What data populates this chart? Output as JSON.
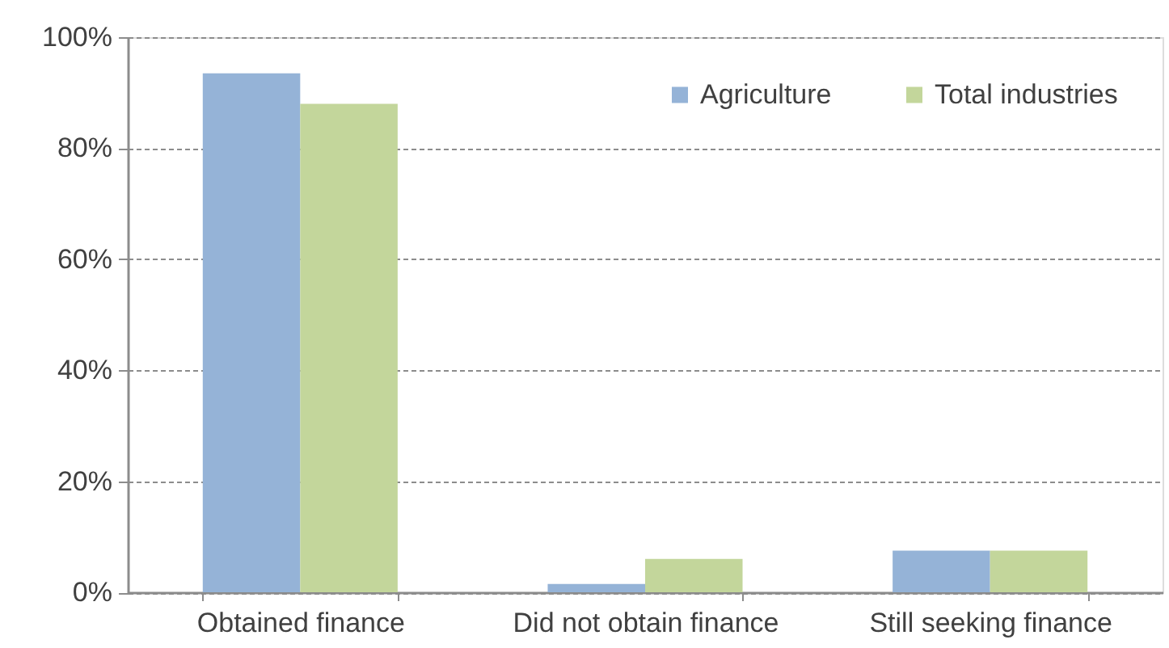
{
  "chart_data": {
    "type": "bar",
    "categories": [
      "Obtained finance",
      "Did not obtain finance",
      "Still seeking finance"
    ],
    "series": [
      {
        "name": "Agriculture",
        "color": "#95b3d7",
        "values": [
          93.5,
          1.5,
          7.5
        ]
      },
      {
        "name": "Total industries",
        "color": "#c3d69b",
        "values": [
          88,
          6,
          7.5
        ]
      }
    ],
    "ylim": [
      0,
      100
    ],
    "yticks": [
      {
        "value": 0,
        "label": "0%"
      },
      {
        "value": 20,
        "label": "20%"
      },
      {
        "value": 40,
        "label": "40%"
      },
      {
        "value": 60,
        "label": "60%"
      },
      {
        "value": 80,
        "label": "80%"
      },
      {
        "value": 100,
        "label": "100%"
      }
    ],
    "grid": "y",
    "legend": "top right"
  }
}
